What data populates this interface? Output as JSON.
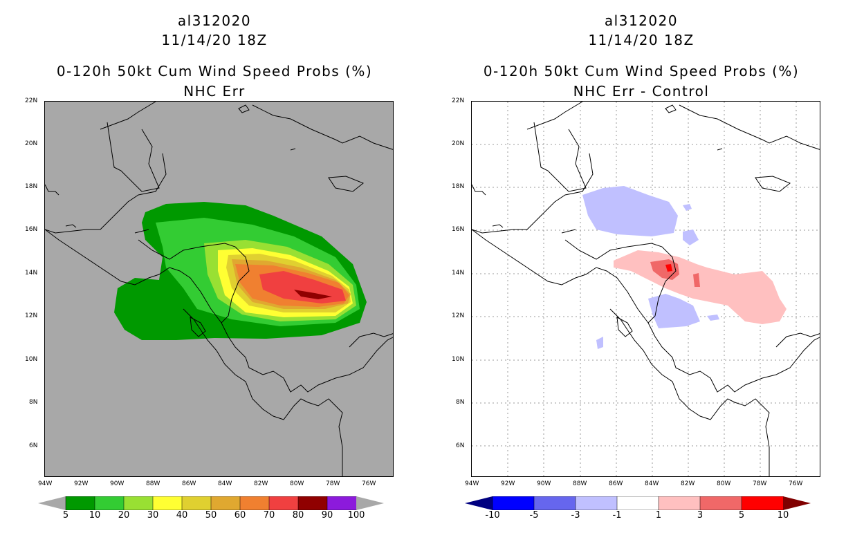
{
  "left_panel": {
    "storm_id": "al312020",
    "datetime": "11/14/20 18Z",
    "product": "0-120h 50kt Cum Wind Speed Probs (%)",
    "subtitle": "NHC Err",
    "background_color": "#a8a8a8"
  },
  "right_panel": {
    "storm_id": "al312020",
    "datetime": "11/14/20 18Z",
    "product": "0-120h 50kt Cum Wind Speed Probs (%)",
    "subtitle": "NHC Err - Control",
    "background_color": "#ffffff"
  },
  "lat_labels": [
    "22N",
    "20N",
    "18N",
    "16N",
    "14N",
    "12N",
    "10N",
    "8N",
    "6N"
  ],
  "lon_labels": [
    "94W",
    "92W",
    "90W",
    "88W",
    "86W",
    "84W",
    "82W",
    "80W",
    "78W",
    "76W"
  ],
  "left_colorbar": {
    "labels": [
      "5",
      "10",
      "20",
      "30",
      "40",
      "50",
      "60",
      "70",
      "80",
      "90",
      "100"
    ],
    "colors": [
      "#009900",
      "#33cc33",
      "#99e033",
      "#ffff33",
      "#e0d030",
      "#e0a830",
      "#f08030",
      "#f04040",
      "#900000",
      "#8c1adc"
    ],
    "end_color": "#a8a8a8"
  },
  "right_colorbar": {
    "labels": [
      "-10",
      "-5",
      "-3",
      "-1",
      "1",
      "3",
      "5",
      "10"
    ],
    "colors": [
      "#0000ff",
      "#6666ee",
      "#c0c0ff",
      "#ffffff",
      "#ffc0c0",
      "#f06868",
      "#ff0000"
    ],
    "low_end_color": "#000080",
    "high_end_color": "#800000"
  }
}
